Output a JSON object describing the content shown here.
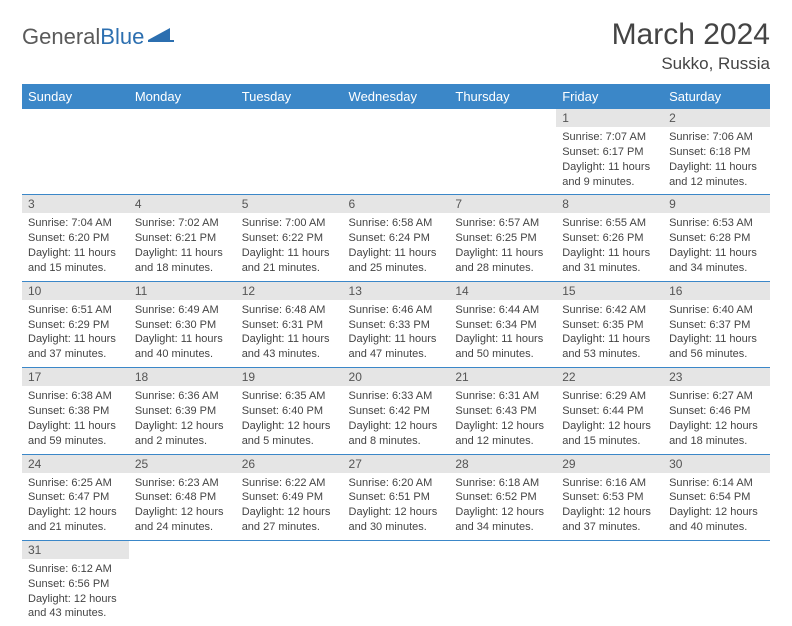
{
  "logo": {
    "word1": "General",
    "word2": "Blue"
  },
  "title": "March 2024",
  "location": "Sukko, Russia",
  "colors": {
    "header_bg": "#3b87c8",
    "header_text": "#ffffff",
    "daynum_bg": "#e5e5e5",
    "row_border": "#3b87c8",
    "logo_gray": "#5a5a5a",
    "logo_blue": "#2c6fb0",
    "body_text": "#444444"
  },
  "typography": {
    "title_fontsize": 30,
    "location_fontsize": 17,
    "dayheader_fontsize": 13,
    "cell_fontsize": 11
  },
  "day_headers": [
    "Sunday",
    "Monday",
    "Tuesday",
    "Wednesday",
    "Thursday",
    "Friday",
    "Saturday"
  ],
  "weeks": [
    [
      {
        "n": "",
        "sr": "",
        "ss": "",
        "dl": ""
      },
      {
        "n": "",
        "sr": "",
        "ss": "",
        "dl": ""
      },
      {
        "n": "",
        "sr": "",
        "ss": "",
        "dl": ""
      },
      {
        "n": "",
        "sr": "",
        "ss": "",
        "dl": ""
      },
      {
        "n": "",
        "sr": "",
        "ss": "",
        "dl": ""
      },
      {
        "n": "1",
        "sr": "Sunrise: 7:07 AM",
        "ss": "Sunset: 6:17 PM",
        "dl": "Daylight: 11 hours and 9 minutes."
      },
      {
        "n": "2",
        "sr": "Sunrise: 7:06 AM",
        "ss": "Sunset: 6:18 PM",
        "dl": "Daylight: 11 hours and 12 minutes."
      }
    ],
    [
      {
        "n": "3",
        "sr": "Sunrise: 7:04 AM",
        "ss": "Sunset: 6:20 PM",
        "dl": "Daylight: 11 hours and 15 minutes."
      },
      {
        "n": "4",
        "sr": "Sunrise: 7:02 AM",
        "ss": "Sunset: 6:21 PM",
        "dl": "Daylight: 11 hours and 18 minutes."
      },
      {
        "n": "5",
        "sr": "Sunrise: 7:00 AM",
        "ss": "Sunset: 6:22 PM",
        "dl": "Daylight: 11 hours and 21 minutes."
      },
      {
        "n": "6",
        "sr": "Sunrise: 6:58 AM",
        "ss": "Sunset: 6:24 PM",
        "dl": "Daylight: 11 hours and 25 minutes."
      },
      {
        "n": "7",
        "sr": "Sunrise: 6:57 AM",
        "ss": "Sunset: 6:25 PM",
        "dl": "Daylight: 11 hours and 28 minutes."
      },
      {
        "n": "8",
        "sr": "Sunrise: 6:55 AM",
        "ss": "Sunset: 6:26 PM",
        "dl": "Daylight: 11 hours and 31 minutes."
      },
      {
        "n": "9",
        "sr": "Sunrise: 6:53 AM",
        "ss": "Sunset: 6:28 PM",
        "dl": "Daylight: 11 hours and 34 minutes."
      }
    ],
    [
      {
        "n": "10",
        "sr": "Sunrise: 6:51 AM",
        "ss": "Sunset: 6:29 PM",
        "dl": "Daylight: 11 hours and 37 minutes."
      },
      {
        "n": "11",
        "sr": "Sunrise: 6:49 AM",
        "ss": "Sunset: 6:30 PM",
        "dl": "Daylight: 11 hours and 40 minutes."
      },
      {
        "n": "12",
        "sr": "Sunrise: 6:48 AM",
        "ss": "Sunset: 6:31 PM",
        "dl": "Daylight: 11 hours and 43 minutes."
      },
      {
        "n": "13",
        "sr": "Sunrise: 6:46 AM",
        "ss": "Sunset: 6:33 PM",
        "dl": "Daylight: 11 hours and 47 minutes."
      },
      {
        "n": "14",
        "sr": "Sunrise: 6:44 AM",
        "ss": "Sunset: 6:34 PM",
        "dl": "Daylight: 11 hours and 50 minutes."
      },
      {
        "n": "15",
        "sr": "Sunrise: 6:42 AM",
        "ss": "Sunset: 6:35 PM",
        "dl": "Daylight: 11 hours and 53 minutes."
      },
      {
        "n": "16",
        "sr": "Sunrise: 6:40 AM",
        "ss": "Sunset: 6:37 PM",
        "dl": "Daylight: 11 hours and 56 minutes."
      }
    ],
    [
      {
        "n": "17",
        "sr": "Sunrise: 6:38 AM",
        "ss": "Sunset: 6:38 PM",
        "dl": "Daylight: 11 hours and 59 minutes."
      },
      {
        "n": "18",
        "sr": "Sunrise: 6:36 AM",
        "ss": "Sunset: 6:39 PM",
        "dl": "Daylight: 12 hours and 2 minutes."
      },
      {
        "n": "19",
        "sr": "Sunrise: 6:35 AM",
        "ss": "Sunset: 6:40 PM",
        "dl": "Daylight: 12 hours and 5 minutes."
      },
      {
        "n": "20",
        "sr": "Sunrise: 6:33 AM",
        "ss": "Sunset: 6:42 PM",
        "dl": "Daylight: 12 hours and 8 minutes."
      },
      {
        "n": "21",
        "sr": "Sunrise: 6:31 AM",
        "ss": "Sunset: 6:43 PM",
        "dl": "Daylight: 12 hours and 12 minutes."
      },
      {
        "n": "22",
        "sr": "Sunrise: 6:29 AM",
        "ss": "Sunset: 6:44 PM",
        "dl": "Daylight: 12 hours and 15 minutes."
      },
      {
        "n": "23",
        "sr": "Sunrise: 6:27 AM",
        "ss": "Sunset: 6:46 PM",
        "dl": "Daylight: 12 hours and 18 minutes."
      }
    ],
    [
      {
        "n": "24",
        "sr": "Sunrise: 6:25 AM",
        "ss": "Sunset: 6:47 PM",
        "dl": "Daylight: 12 hours and 21 minutes."
      },
      {
        "n": "25",
        "sr": "Sunrise: 6:23 AM",
        "ss": "Sunset: 6:48 PM",
        "dl": "Daylight: 12 hours and 24 minutes."
      },
      {
        "n": "26",
        "sr": "Sunrise: 6:22 AM",
        "ss": "Sunset: 6:49 PM",
        "dl": "Daylight: 12 hours and 27 minutes."
      },
      {
        "n": "27",
        "sr": "Sunrise: 6:20 AM",
        "ss": "Sunset: 6:51 PM",
        "dl": "Daylight: 12 hours and 30 minutes."
      },
      {
        "n": "28",
        "sr": "Sunrise: 6:18 AM",
        "ss": "Sunset: 6:52 PM",
        "dl": "Daylight: 12 hours and 34 minutes."
      },
      {
        "n": "29",
        "sr": "Sunrise: 6:16 AM",
        "ss": "Sunset: 6:53 PM",
        "dl": "Daylight: 12 hours and 37 minutes."
      },
      {
        "n": "30",
        "sr": "Sunrise: 6:14 AM",
        "ss": "Sunset: 6:54 PM",
        "dl": "Daylight: 12 hours and 40 minutes."
      }
    ],
    [
      {
        "n": "31",
        "sr": "Sunrise: 6:12 AM",
        "ss": "Sunset: 6:56 PM",
        "dl": "Daylight: 12 hours and 43 minutes."
      },
      {
        "n": "",
        "sr": "",
        "ss": "",
        "dl": ""
      },
      {
        "n": "",
        "sr": "",
        "ss": "",
        "dl": ""
      },
      {
        "n": "",
        "sr": "",
        "ss": "",
        "dl": ""
      },
      {
        "n": "",
        "sr": "",
        "ss": "",
        "dl": ""
      },
      {
        "n": "",
        "sr": "",
        "ss": "",
        "dl": ""
      },
      {
        "n": "",
        "sr": "",
        "ss": "",
        "dl": ""
      }
    ]
  ]
}
